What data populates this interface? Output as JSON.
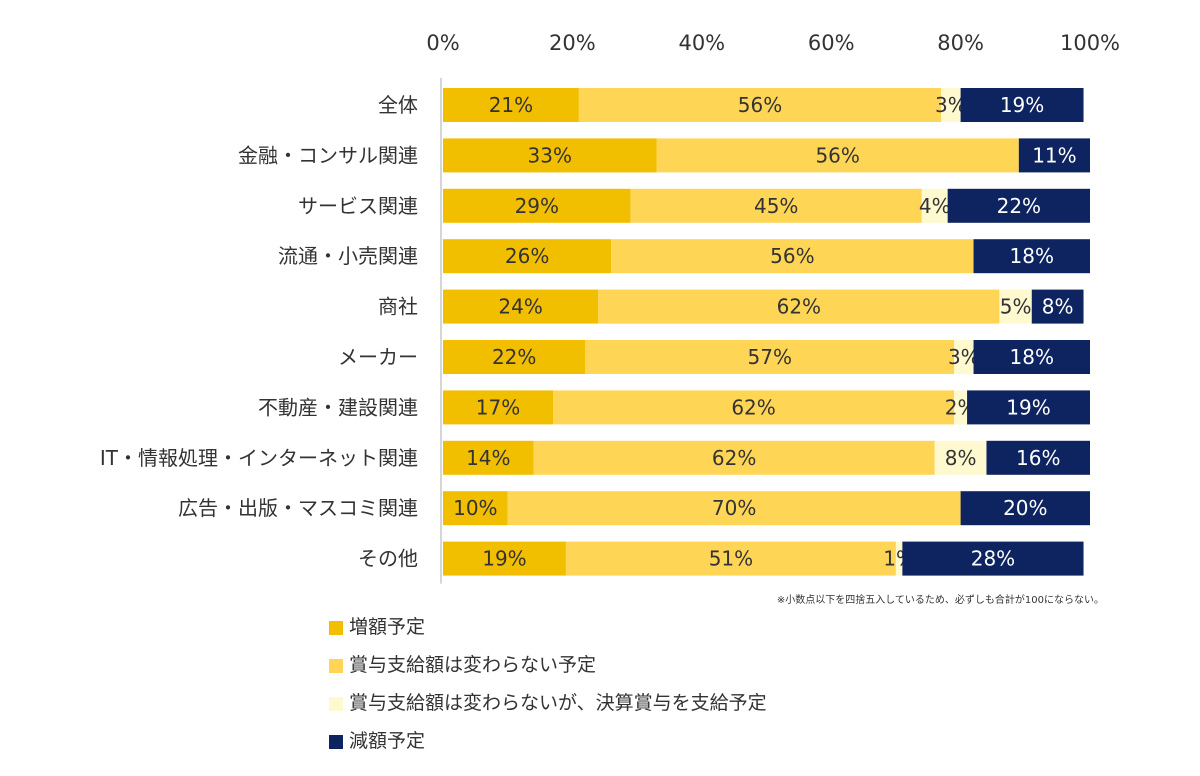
{
  "chart_data": {
    "type": "bar",
    "orientation": "horizontal",
    "stacked": true,
    "categories": [
      "全体",
      "金融・コンサル関連",
      "サービス関連",
      "流通・小売関連",
      "商社",
      "メーカー",
      "不動産・建設関連",
      "IT・情報処理・インターネット関連",
      "広告・出版・マスコミ関連",
      "その他"
    ],
    "series": [
      {
        "name": "増額予定",
        "color": "#F2BE00",
        "label_color": "#333333",
        "values": [
          21,
          33,
          29,
          26,
          24,
          22,
          17,
          14,
          10,
          19
        ]
      },
      {
        "name": "賞与支給額は変わらない予定",
        "color": "#FFD556",
        "label_color": "#333333",
        "values": [
          56,
          56,
          45,
          56,
          62,
          57,
          62,
          62,
          70,
          51
        ]
      },
      {
        "name": "賞与支給額は変わらないが、決算賞与を支給予定",
        "color": "#FFF9D0",
        "label_color": "#333333",
        "values": [
          3,
          0,
          4,
          0,
          5,
          3,
          2,
          8,
          0,
          1
        ]
      },
      {
        "name": "減額予定",
        "color": "#0E2460",
        "label_color": "#FFFFFF",
        "values": [
          19,
          11,
          22,
          18,
          8,
          18,
          19,
          16,
          20,
          28
        ]
      }
    ],
    "xlim": [
      0,
      100
    ],
    "x_ticks": [
      "0%",
      "20%",
      "40%",
      "60%",
      "80%",
      "100%"
    ],
    "tick_values": [
      0,
      20,
      40,
      60,
      80,
      100
    ],
    "value_suffix": "%",
    "legend_position": "bottom-left",
    "grid": false
  },
  "footnote": "※小数点以下を四捨五入しているため、必ずしも合計が100にならない。"
}
